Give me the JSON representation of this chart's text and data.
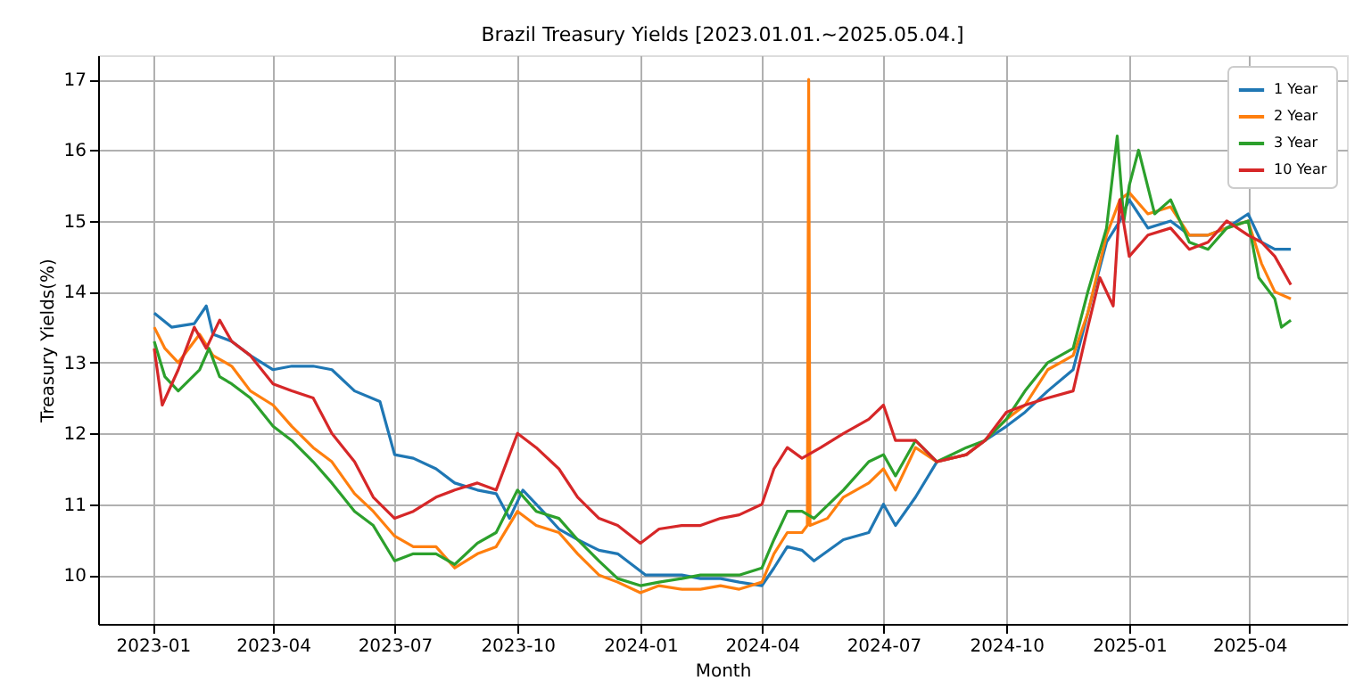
{
  "chart_data": {
    "type": "line",
    "title": "Brazil Treasury Yields [2023.01.01.~2025.05.04.]",
    "xlabel": "Month",
    "ylabel": "Treasury Yields(%)",
    "xlim": [
      "2022-11-21",
      "2025-06-13"
    ],
    "ylim": [
      9.31,
      17.34
    ],
    "xticks": [
      "2023-01",
      "2023-04",
      "2023-07",
      "2023-10",
      "2024-01",
      "2024-04",
      "2024-07",
      "2024-10",
      "2025-01",
      "2025-04"
    ],
    "yticks": [
      10,
      11,
      12,
      13,
      14,
      15,
      16,
      17
    ],
    "grid": true,
    "legend": "top right",
    "line_style": "solid",
    "marker": "none",
    "series": [
      {
        "name": "1 Year",
        "color": "#1f77b4",
        "x": [
          "2023-01-02",
          "2023-01-15",
          "2023-02-01",
          "2023-02-10",
          "2023-02-15",
          "2023-03-01",
          "2023-03-15",
          "2023-04-01",
          "2023-04-15",
          "2023-05-01",
          "2023-05-15",
          "2023-06-01",
          "2023-06-20",
          "2023-07-01",
          "2023-07-15",
          "2023-08-01",
          "2023-08-15",
          "2023-09-01",
          "2023-09-15",
          "2023-09-25",
          "2023-10-05",
          "2023-10-20",
          "2023-11-01",
          "2023-11-15",
          "2023-12-01",
          "2023-12-15",
          "2024-01-05",
          "2024-02-01",
          "2024-02-15",
          "2024-03-01",
          "2024-03-15",
          "2024-04-01",
          "2024-04-10",
          "2024-04-20",
          "2024-05-01",
          "2024-05-10",
          "2024-06-01",
          "2024-06-20",
          "2024-07-01",
          "2024-07-10",
          "2024-07-25",
          "2024-08-10",
          "2024-09-01",
          "2024-09-15",
          "2024-10-01",
          "2024-10-15",
          "2024-11-01",
          "2024-11-20",
          "2024-12-01",
          "2024-12-15",
          "2024-12-25",
          "2025-01-01",
          "2025-01-15",
          "2025-02-01",
          "2025-02-15",
          "2025-03-01",
          "2025-03-15",
          "2025-03-31",
          "2025-04-10",
          "2025-04-20",
          "2025-05-02"
        ],
        "values": [
          13.7,
          13.5,
          13.55,
          13.8,
          13.4,
          13.3,
          13.1,
          12.9,
          12.95,
          12.95,
          12.9,
          12.6,
          12.45,
          11.7,
          11.65,
          11.5,
          11.3,
          11.2,
          11.15,
          10.8,
          11.2,
          10.9,
          10.65,
          10.5,
          10.35,
          10.3,
          10.0,
          10.0,
          9.95,
          9.95,
          9.9,
          9.85,
          10.1,
          10.4,
          10.35,
          10.2,
          10.5,
          10.6,
          11.0,
          10.7,
          11.1,
          11.6,
          11.7,
          11.9,
          12.1,
          12.3,
          12.6,
          12.9,
          13.7,
          14.7,
          15.0,
          15.3,
          14.9,
          15.0,
          14.8,
          14.8,
          14.9,
          15.1,
          14.7,
          14.6,
          14.6
        ]
      },
      {
        "name": "2 Year",
        "color": "#ff7f0e",
        "x": [
          "2023-01-02",
          "2023-01-10",
          "2023-01-20",
          "2023-02-05",
          "2023-02-15",
          "2023-03-01",
          "2023-03-15",
          "2023-04-01",
          "2023-04-15",
          "2023-05-01",
          "2023-05-15",
          "2023-06-01",
          "2023-06-15",
          "2023-07-01",
          "2023-07-15",
          "2023-08-01",
          "2023-08-15",
          "2023-09-01",
          "2023-09-15",
          "2023-10-01",
          "2023-10-15",
          "2023-11-01",
          "2023-11-15",
          "2023-12-01",
          "2023-12-15",
          "2024-01-01",
          "2024-01-15",
          "2024-02-01",
          "2024-02-15",
          "2024-03-01",
          "2024-03-15",
          "2024-04-01",
          "2024-04-10",
          "2024-04-20",
          "2024-05-01",
          "2024-05-05",
          "2024-05-06",
          "2024-05-07",
          "2024-05-20",
          "2024-06-01",
          "2024-06-20",
          "2024-07-01",
          "2024-07-10",
          "2024-07-25",
          "2024-08-10",
          "2024-09-01",
          "2024-09-15",
          "2024-10-01",
          "2024-10-15",
          "2024-11-01",
          "2024-11-20",
          "2024-12-01",
          "2024-12-15",
          "2024-12-25",
          "2025-01-01",
          "2025-01-15",
          "2025-02-01",
          "2025-02-15",
          "2025-03-01",
          "2025-03-15",
          "2025-03-31",
          "2025-04-10",
          "2025-04-20",
          "2025-05-02"
        ],
        "values": [
          13.5,
          13.2,
          13.0,
          13.4,
          13.1,
          12.95,
          12.6,
          12.4,
          12.1,
          11.8,
          11.6,
          11.15,
          10.9,
          10.55,
          10.4,
          10.4,
          10.1,
          10.3,
          10.4,
          10.9,
          10.7,
          10.6,
          10.3,
          10.0,
          9.9,
          9.75,
          9.85,
          9.8,
          9.8,
          9.85,
          9.8,
          9.9,
          10.3,
          10.6,
          10.6,
          10.7,
          17.0,
          10.7,
          10.8,
          11.1,
          11.3,
          11.5,
          11.2,
          11.8,
          11.6,
          11.7,
          11.9,
          12.2,
          12.4,
          12.9,
          13.1,
          13.7,
          14.8,
          15.3,
          15.4,
          15.1,
          15.2,
          14.8,
          14.8,
          14.9,
          15.0,
          14.4,
          14.0,
          13.9
        ]
      },
      {
        "name": "3 Year",
        "color": "#2ca02c",
        "x": [
          "2023-01-02",
          "2023-01-10",
          "2023-01-20",
          "2023-02-05",
          "2023-02-12",
          "2023-02-20",
          "2023-03-01",
          "2023-03-15",
          "2023-04-01",
          "2023-04-15",
          "2023-05-01",
          "2023-05-15",
          "2023-06-01",
          "2023-06-15",
          "2023-07-01",
          "2023-07-15",
          "2023-08-01",
          "2023-08-15",
          "2023-09-01",
          "2023-09-15",
          "2023-10-01",
          "2023-10-15",
          "2023-11-01",
          "2023-11-15",
          "2023-12-01",
          "2023-12-15",
          "2024-01-01",
          "2024-01-15",
          "2024-02-01",
          "2024-02-15",
          "2024-03-01",
          "2024-03-15",
          "2024-04-01",
          "2024-04-10",
          "2024-04-20",
          "2024-05-01",
          "2024-05-10",
          "2024-06-01",
          "2024-06-20",
          "2024-07-01",
          "2024-07-10",
          "2024-07-25",
          "2024-08-10",
          "2024-09-01",
          "2024-09-15",
          "2024-10-01",
          "2024-10-15",
          "2024-11-01",
          "2024-11-20",
          "2024-12-01",
          "2024-12-15",
          "2024-12-23",
          "2024-12-28",
          "2025-01-01",
          "2025-01-08",
          "2025-01-20",
          "2025-02-01",
          "2025-02-15",
          "2025-03-01",
          "2025-03-15",
          "2025-03-31",
          "2025-04-08",
          "2025-04-20",
          "2025-04-25",
          "2025-05-02"
        ],
        "values": [
          13.3,
          12.8,
          12.6,
          12.9,
          13.2,
          12.8,
          12.7,
          12.5,
          12.1,
          11.9,
          11.6,
          11.3,
          10.9,
          10.7,
          10.2,
          10.3,
          10.3,
          10.15,
          10.45,
          10.6,
          11.2,
          10.9,
          10.8,
          10.5,
          10.2,
          9.95,
          9.85,
          9.9,
          9.95,
          10.0,
          10.0,
          10.0,
          10.1,
          10.5,
          10.9,
          10.9,
          10.8,
          11.2,
          11.6,
          11.7,
          11.4,
          11.9,
          11.6,
          11.8,
          11.9,
          12.2,
          12.6,
          13.0,
          13.2,
          14.0,
          14.9,
          16.2,
          15.0,
          15.5,
          16.0,
          15.1,
          15.3,
          14.7,
          14.6,
          14.9,
          15.0,
          14.2,
          13.9,
          13.5,
          13.6
        ]
      },
      {
        "name": "10 Year",
        "color": "#d62728",
        "x": [
          "2023-01-02",
          "2023-01-08",
          "2023-01-20",
          "2023-02-01",
          "2023-02-10",
          "2023-02-20",
          "2023-03-01",
          "2023-03-15",
          "2023-04-01",
          "2023-04-15",
          "2023-05-01",
          "2023-05-15",
          "2023-06-01",
          "2023-06-15",
          "2023-07-01",
          "2023-07-15",
          "2023-08-01",
          "2023-08-15",
          "2023-09-01",
          "2023-09-15",
          "2023-10-01",
          "2023-10-15",
          "2023-11-01",
          "2023-11-15",
          "2023-12-01",
          "2023-12-15",
          "2024-01-01",
          "2024-01-15",
          "2024-02-01",
          "2024-02-15",
          "2024-03-01",
          "2024-03-15",
          "2024-04-01",
          "2024-04-10",
          "2024-04-20",
          "2024-05-01",
          "2024-05-15",
          "2024-06-01",
          "2024-06-20",
          "2024-07-01",
          "2024-07-10",
          "2024-07-25",
          "2024-08-10",
          "2024-09-01",
          "2024-09-15",
          "2024-10-01",
          "2024-10-15",
          "2024-11-01",
          "2024-11-20",
          "2024-12-01",
          "2024-12-10",
          "2024-12-20",
          "2024-12-25",
          "2025-01-01",
          "2025-01-15",
          "2025-02-01",
          "2025-02-15",
          "2025-03-01",
          "2025-03-15",
          "2025-03-31",
          "2025-04-10",
          "2025-04-20",
          "2025-05-02"
        ],
        "values": [
          13.2,
          12.4,
          12.9,
          13.5,
          13.2,
          13.6,
          13.3,
          13.1,
          12.7,
          12.6,
          12.5,
          12.0,
          11.6,
          11.1,
          10.8,
          10.9,
          11.1,
          11.2,
          11.3,
          11.2,
          12.0,
          11.8,
          11.5,
          11.1,
          10.8,
          10.7,
          10.45,
          10.65,
          10.7,
          10.7,
          10.8,
          10.85,
          11.0,
          11.5,
          11.8,
          11.65,
          11.8,
          12.0,
          12.2,
          12.4,
          11.9,
          11.9,
          11.6,
          11.7,
          11.9,
          12.3,
          12.4,
          12.5,
          12.6,
          13.5,
          14.2,
          13.8,
          15.3,
          14.5,
          14.8,
          14.9,
          14.6,
          14.7,
          15.0,
          14.8,
          14.7,
          14.5,
          14.1
        ]
      }
    ]
  }
}
